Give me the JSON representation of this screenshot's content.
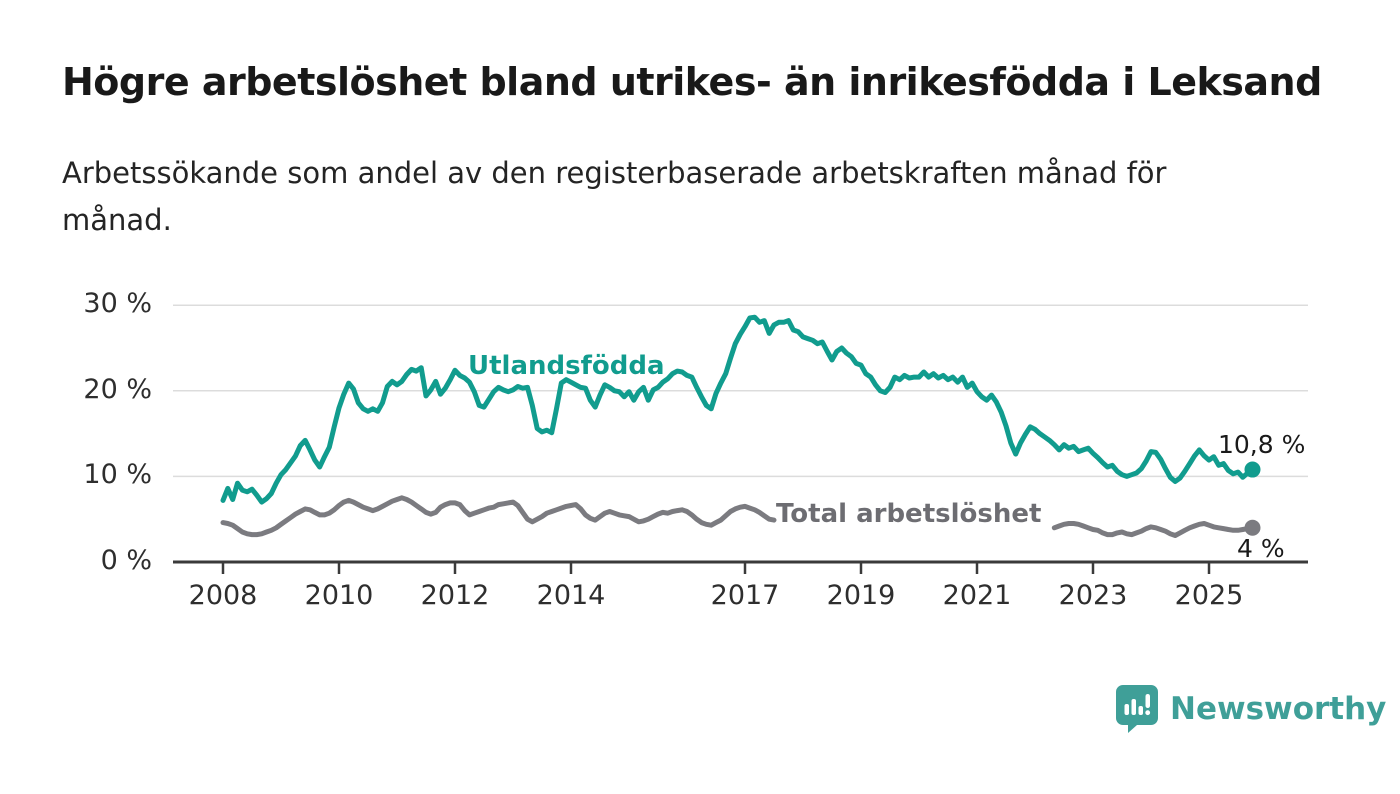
{
  "header": {
    "title": "Högre arbetslöshet bland utrikes- än inrikesfödda i Leksand",
    "subtitle": "Arbetssökande som andel av den registerbaserade arbetskraften månad för månad."
  },
  "footer": {
    "brand": "Newsworthy",
    "brand_color": "#3f9f98",
    "logo_icon": "newsworthy-speech-bubble-bar-chart-icon"
  },
  "colors": {
    "foreign_born_line": "#119c8e",
    "total_line": "#7b7b80",
    "total_label": "#6d6d72",
    "grid": "#dcdcdc",
    "axis": "#3a3a3a",
    "value_label": "#1a1a1a"
  },
  "chart_data": {
    "type": "line",
    "title": "Högre arbetslöshet bland utrikes- än inrikesfödda i Leksand",
    "subtitle": "Arbetssökande som andel av den registerbaserade arbetskraften månad för månad.",
    "unit": "%",
    "grid": "horizontal",
    "legend_position": "inline-labels",
    "x_axis": {
      "start": 2008.0,
      "end": 2025.83,
      "ticks": [
        2008,
        2010,
        2012,
        2014,
        2017,
        2019,
        2021,
        2023,
        2025
      ],
      "tick_labels": [
        "2008",
        "2010",
        "2012",
        "2014",
        "2017",
        "2019",
        "2021",
        "2023",
        "2025"
      ]
    },
    "y_axis": {
      "min": 0,
      "max": 32,
      "ticks": [
        0,
        10,
        20,
        30
      ],
      "tick_labels": [
        "0 %",
        "10 %",
        "20 %",
        "30 %"
      ]
    },
    "series": [
      {
        "name": "Utlandsfödda",
        "color": "#119c8e",
        "end_value": 10.8,
        "end_label": "10,8 %",
        "segments": [
          {
            "start_year": 2008,
            "start_month": 1,
            "values": [
              7.2,
              8.6,
              7.3,
              9.2,
              8.4,
              8.2,
              8.5,
              7.8,
              7.0,
              7.4,
              8.0,
              9.2,
              10.2,
              10.8,
              11.6,
              12.4,
              13.6,
              14.2,
              13.1,
              11.9,
              11.1,
              12.3,
              13.4,
              15.8,
              18.0,
              19.6,
              20.9,
              20.2,
              18.6,
              17.9,
              17.6,
              17.9,
              17.6,
              18.6,
              20.5,
              21.1,
              20.7,
              21.1,
              21.9,
              22.5,
              22.3,
              22.7,
              19.4,
              20.1,
              21.1,
              19.6,
              20.3,
              21.3,
              22.4,
              21.8,
              21.5,
              21.0,
              19.9,
              18.3,
              18.1,
              19.0,
              19.9,
              20.4,
              20.1,
              19.9,
              20.1,
              20.5,
              20.3,
              20.4,
              18.3,
              15.6,
              15.2,
              15.4,
              15.1,
              17.9,
              20.9,
              21.3,
              21.0,
              20.7,
              20.4,
              20.3,
              18.9,
              18.1,
              19.5,
              20.7,
              20.4,
              20.0,
              19.9,
              19.3,
              19.9,
              18.9,
              19.9,
              20.4,
              18.9,
              20.1,
              20.4,
              21.0,
              21.4,
              22.0,
              22.3,
              22.2,
              21.8,
              21.6,
              20.4,
              19.3,
              18.3,
              17.9,
              19.7,
              20.9,
              22.0,
              23.8,
              25.5,
              26.6,
              27.5,
              28.5,
              28.6,
              28.0,
              28.2,
              26.7,
              27.7,
              28.0,
              28.0,
              28.2,
              27.1,
              26.9,
              26.3,
              26.1,
              25.9,
              25.5,
              25.7,
              24.6,
              23.6,
              24.6,
              25.0,
              24.4,
              24.0,
              23.2,
              23.0,
              22.0,
              21.6,
              20.7,
              20.0,
              19.8,
              20.4,
              21.6,
              21.3,
              21.8,
              21.5,
              21.6,
              21.6,
              22.2,
              21.6,
              22.0,
              21.5,
              21.8,
              21.3,
              21.6,
              21.0,
              21.6,
              20.4,
              20.9,
              19.9,
              19.3,
              18.9,
              19.5,
              18.7,
              17.5,
              15.9,
              13.9,
              12.6,
              13.9,
              14.9,
              15.8,
              15.5,
              15.0,
              14.6,
              14.2,
              13.7,
              13.1,
              13.7,
              13.3,
              13.5,
              12.9,
              13.1,
              13.3,
              12.7,
              12.2,
              11.6,
              11.1,
              11.3,
              10.6,
              10.2,
              10.0,
              10.2,
              10.4,
              10.9,
              11.8,
              12.9,
              12.8,
              12.0,
              10.9,
              9.9,
              9.4,
              9.8,
              10.6,
              11.5,
              12.4,
              13.1,
              12.4,
              11.9,
              12.3,
              11.3,
              11.5,
              10.7,
              10.3,
              10.5,
              9.9,
              10.4,
              10.8
            ]
          }
        ]
      },
      {
        "name": "Total arbetslöshet",
        "color": "#7b7b80",
        "label_color": "#6d6d72",
        "end_value": 4,
        "end_label": "4 %",
        "segments": [
          {
            "start_year": 2008,
            "start_month": 1,
            "values": [
              4.6,
              4.5,
              4.3,
              3.9,
              3.5,
              3.3,
              3.2,
              3.2,
              3.3,
              3.5,
              3.7,
              4.0,
              4.4,
              4.8,
              5.2,
              5.6,
              5.9,
              6.2,
              6.1,
              5.8,
              5.5,
              5.5,
              5.7,
              6.1,
              6.6,
              7.0,
              7.2,
              7.0,
              6.7,
              6.4,
              6.2,
              6.0,
              6.2,
              6.5,
              6.8,
              7.1,
              7.3,
              7.5,
              7.3,
              7.0,
              6.6,
              6.2,
              5.8,
              5.6,
              5.8,
              6.4,
              6.7,
              6.9,
              6.9,
              6.7,
              6.0,
              5.5,
              5.7,
              5.9,
              6.1,
              6.3,
              6.4,
              6.7,
              6.8,
              6.9,
              7.0,
              6.6,
              5.8,
              5.0,
              4.7,
              5.0,
              5.3,
              5.7,
              5.9,
              6.1,
              6.3,
              6.5,
              6.6,
              6.7,
              6.2,
              5.5,
              5.1,
              4.9,
              5.3,
              5.7,
              5.9,
              5.7,
              5.5,
              5.4,
              5.3,
              5.0,
              4.7,
              4.8,
              5.0,
              5.3,
              5.6,
              5.8,
              5.7,
              5.9,
              6.0,
              6.1,
              5.9,
              5.5,
              5.0,
              4.6,
              4.4,
              4.3,
              4.6,
              4.9,
              5.4,
              5.9,
              6.2,
              6.4,
              6.5,
              6.3,
              6.1,
              5.8,
              5.4,
              5.0,
              4.9
            ]
          },
          {
            "start_year": 2022,
            "start_month": 5,
            "values": [
              4.0,
              4.2,
              4.4,
              4.5,
              4.5,
              4.4,
              4.2,
              4.0,
              3.8,
              3.7,
              3.4,
              3.2,
              3.2,
              3.4,
              3.5,
              3.3,
              3.2,
              3.4,
              3.6,
              3.9,
              4.1,
              4.0,
              3.8,
              3.6,
              3.3,
              3.1,
              3.4,
              3.7,
              4.0,
              4.2,
              4.4,
              4.5,
              4.3,
              4.1,
              4.0,
              3.9,
              3.8,
              3.7,
              3.7,
              3.8,
              3.9,
              4.0
            ]
          }
        ]
      }
    ]
  }
}
